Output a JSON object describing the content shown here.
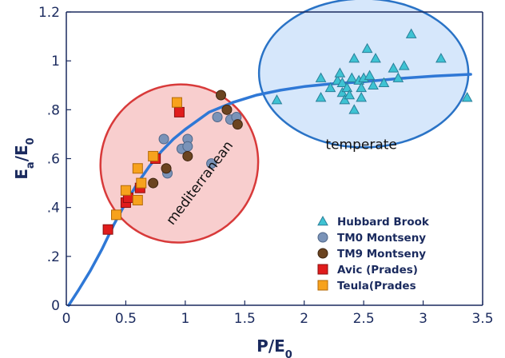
{
  "chart_data": {
    "type": "scatter",
    "xlabel": "P/E",
    "xlabel_sub": "0",
    "ylabel_main": "E",
    "ylabel_sub1": "a",
    "ylabel_mid": "/E",
    "ylabel_sub2": "0",
    "xlim": [
      0,
      3.5
    ],
    "ylim": [
      0,
      1.2
    ],
    "xticks": [
      {
        "v": 0,
        "label": "0"
      },
      {
        "v": 0.5,
        "label": "0.5"
      },
      {
        "v": 1,
        "label": "1"
      },
      {
        "v": 1.5,
        "label": "1.5"
      },
      {
        "v": 2,
        "label": "2"
      },
      {
        "v": 2.5,
        "label": "2.5"
      },
      {
        "v": 3,
        "label": "3"
      },
      {
        "v": 3.5,
        "label": "3.5"
      }
    ],
    "yticks": [
      {
        "v": 0,
        "label": "0"
      },
      {
        "v": 0.2,
        "label": ".2"
      },
      {
        "v": 0.4,
        "label": ".4"
      },
      {
        "v": 0.6,
        "label": ".6"
      },
      {
        "v": 0.8,
        "label": ".8"
      },
      {
        "v": 1,
        "label": "1"
      },
      {
        "v": 1.2,
        "label": "1.2"
      }
    ],
    "grid": false,
    "legend_position": "bottom-right",
    "series": [
      {
        "name": "Hubbard Brook",
        "marker": "triangle",
        "color": "#3ec3d3",
        "stroke": "#2a7f99",
        "points": [
          [
            1.77,
            0.84
          ],
          [
            2.14,
            0.93
          ],
          [
            2.14,
            0.85
          ],
          [
            2.22,
            0.89
          ],
          [
            2.28,
            0.92
          ],
          [
            2.3,
            0.95
          ],
          [
            2.32,
            0.91
          ],
          [
            2.32,
            0.87
          ],
          [
            2.34,
            0.84
          ],
          [
            2.36,
            0.89
          ],
          [
            2.38,
            0.86
          ],
          [
            2.4,
            0.93
          ],
          [
            2.42,
            1.01
          ],
          [
            2.42,
            0.8
          ],
          [
            2.46,
            0.92
          ],
          [
            2.48,
            0.89
          ],
          [
            2.48,
            0.85
          ],
          [
            2.5,
            0.93
          ],
          [
            2.53,
            1.05
          ],
          [
            2.55,
            0.94
          ],
          [
            2.58,
            0.9
          ],
          [
            2.6,
            1.01
          ],
          [
            2.67,
            0.91
          ],
          [
            2.75,
            0.97
          ],
          [
            2.79,
            0.93
          ],
          [
            2.84,
            0.98
          ],
          [
            2.9,
            1.11
          ],
          [
            3.15,
            1.01
          ],
          [
            3.37,
            0.85
          ]
        ]
      },
      {
        "name": "TM0 Montseny",
        "marker": "circle",
        "color": "#7a93b8",
        "stroke": "#4f6688",
        "points": [
          [
            0.82,
            0.68
          ],
          [
            0.85,
            0.54
          ],
          [
            0.97,
            0.64
          ],
          [
            1.02,
            0.68
          ],
          [
            1.02,
            0.65
          ],
          [
            1.22,
            0.58
          ],
          [
            1.27,
            0.77
          ],
          [
            1.38,
            0.76
          ],
          [
            1.43,
            0.77
          ]
        ]
      },
      {
        "name": "TM9 Montseny",
        "marker": "circle",
        "color": "#6b4420",
        "stroke": "#3d2410",
        "points": [
          [
            0.73,
            0.5
          ],
          [
            0.84,
            0.56
          ],
          [
            1.02,
            0.61
          ],
          [
            1.3,
            0.86
          ],
          [
            1.35,
            0.8
          ],
          [
            1.44,
            0.74
          ]
        ]
      },
      {
        "name": "Avic (Prades)",
        "marker": "square",
        "color": "#e01c1c",
        "stroke": "#8a0f0f",
        "points": [
          [
            0.35,
            0.31
          ],
          [
            0.5,
            0.42
          ],
          [
            0.52,
            0.44
          ],
          [
            0.62,
            0.48
          ],
          [
            0.75,
            0.6
          ],
          [
            0.95,
            0.79
          ]
        ]
      },
      {
        "name": "Teula(Prades",
        "marker": "square",
        "color": "#f7a21d",
        "stroke": "#b36a0a",
        "points": [
          [
            0.42,
            0.37
          ],
          [
            0.5,
            0.47
          ],
          [
            0.6,
            0.43
          ],
          [
            0.6,
            0.56
          ],
          [
            0.63,
            0.5
          ],
          [
            0.73,
            0.61
          ],
          [
            0.93,
            0.83
          ]
        ]
      }
    ],
    "fit_curve": {
      "color": "#2f78d6",
      "points": [
        [
          0.02,
          0.0
        ],
        [
          0.1,
          0.06
        ],
        [
          0.2,
          0.14
        ],
        [
          0.3,
          0.23
        ],
        [
          0.4,
          0.33
        ],
        [
          0.5,
          0.42
        ],
        [
          0.6,
          0.5
        ],
        [
          0.7,
          0.57
        ],
        [
          0.8,
          0.63
        ],
        [
          0.9,
          0.68
        ],
        [
          1.0,
          0.72
        ],
        [
          1.2,
          0.79
        ],
        [
          1.4,
          0.83
        ],
        [
          1.6,
          0.86
        ],
        [
          1.8,
          0.88
        ],
        [
          2.0,
          0.895
        ],
        [
          2.2,
          0.905
        ],
        [
          2.5,
          0.915
        ],
        [
          2.8,
          0.928
        ],
        [
          3.1,
          0.938
        ],
        [
          3.4,
          0.945
        ]
      ]
    },
    "regions": [
      {
        "name": "mediterranean",
        "fill": "#f7c5c5",
        "stroke": "#d83a3a",
        "cx": 0.95,
        "cy": 0.58,
        "rx": 0.67,
        "ry": 0.2,
        "angle_deg": -49
      },
      {
        "name": "temperate",
        "fill": "#cfe3fa",
        "stroke": "#2a73c6",
        "cx": 2.5,
        "cy": 0.95,
        "rx": 0.88,
        "ry": 0.19,
        "angle_deg": 0
      }
    ],
    "annotations": [
      {
        "text": "mediterranean",
        "x": 1.15,
        "y": 0.49,
        "rotate_deg": -53
      },
      {
        "text": "temperate",
        "x": 2.48,
        "y": 0.64,
        "rotate_deg": 0
      }
    ]
  }
}
